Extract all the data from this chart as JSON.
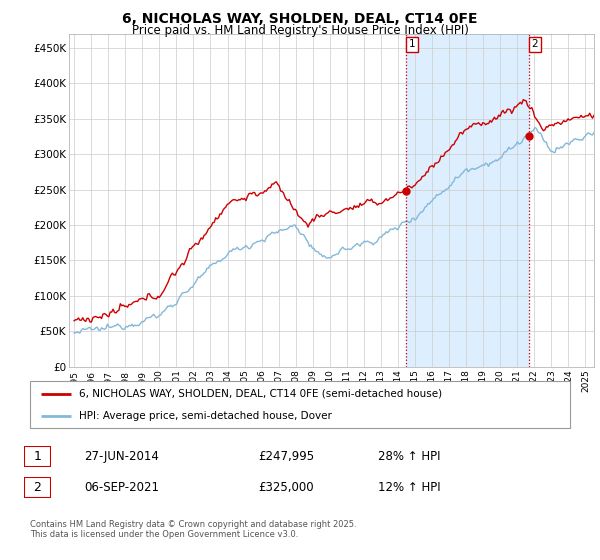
{
  "title": "6, NICHOLAS WAY, SHOLDEN, DEAL, CT14 0FE",
  "subtitle": "Price paid vs. HM Land Registry's House Price Index (HPI)",
  "ylabel_ticks": [
    "£0",
    "£50K",
    "£100K",
    "£150K",
    "£200K",
    "£250K",
    "£300K",
    "£350K",
    "£400K",
    "£450K"
  ],
  "ytick_values": [
    0,
    50000,
    100000,
    150000,
    200000,
    250000,
    300000,
    350000,
    400000,
    450000
  ],
  "ylim": [
    0,
    470000
  ],
  "xlim_start": 1994.7,
  "xlim_end": 2025.5,
  "purchase1_x": 2014.49,
  "purchase1_y": 247995,
  "purchase2_x": 2021.68,
  "purchase2_y": 325000,
  "vline1_x": 2014.49,
  "vline2_x": 2021.68,
  "legend_line1": "6, NICHOLAS WAY, SHOLDEN, DEAL, CT14 0FE (semi-detached house)",
  "legend_line2": "HPI: Average price, semi-detached house, Dover",
  "note1_date": "27-JUN-2014",
  "note1_price": "£247,995",
  "note1_hpi": "28% ↑ HPI",
  "note2_date": "06-SEP-2021",
  "note2_price": "£325,000",
  "note2_hpi": "12% ↑ HPI",
  "footer": "Contains HM Land Registry data © Crown copyright and database right 2025.\nThis data is licensed under the Open Government Licence v3.0.",
  "line_color_property": "#cc0000",
  "line_color_hpi": "#85b8d8",
  "shaded_color": "#ddeeff",
  "background_color": "#ffffff",
  "grid_color": "#cccccc"
}
